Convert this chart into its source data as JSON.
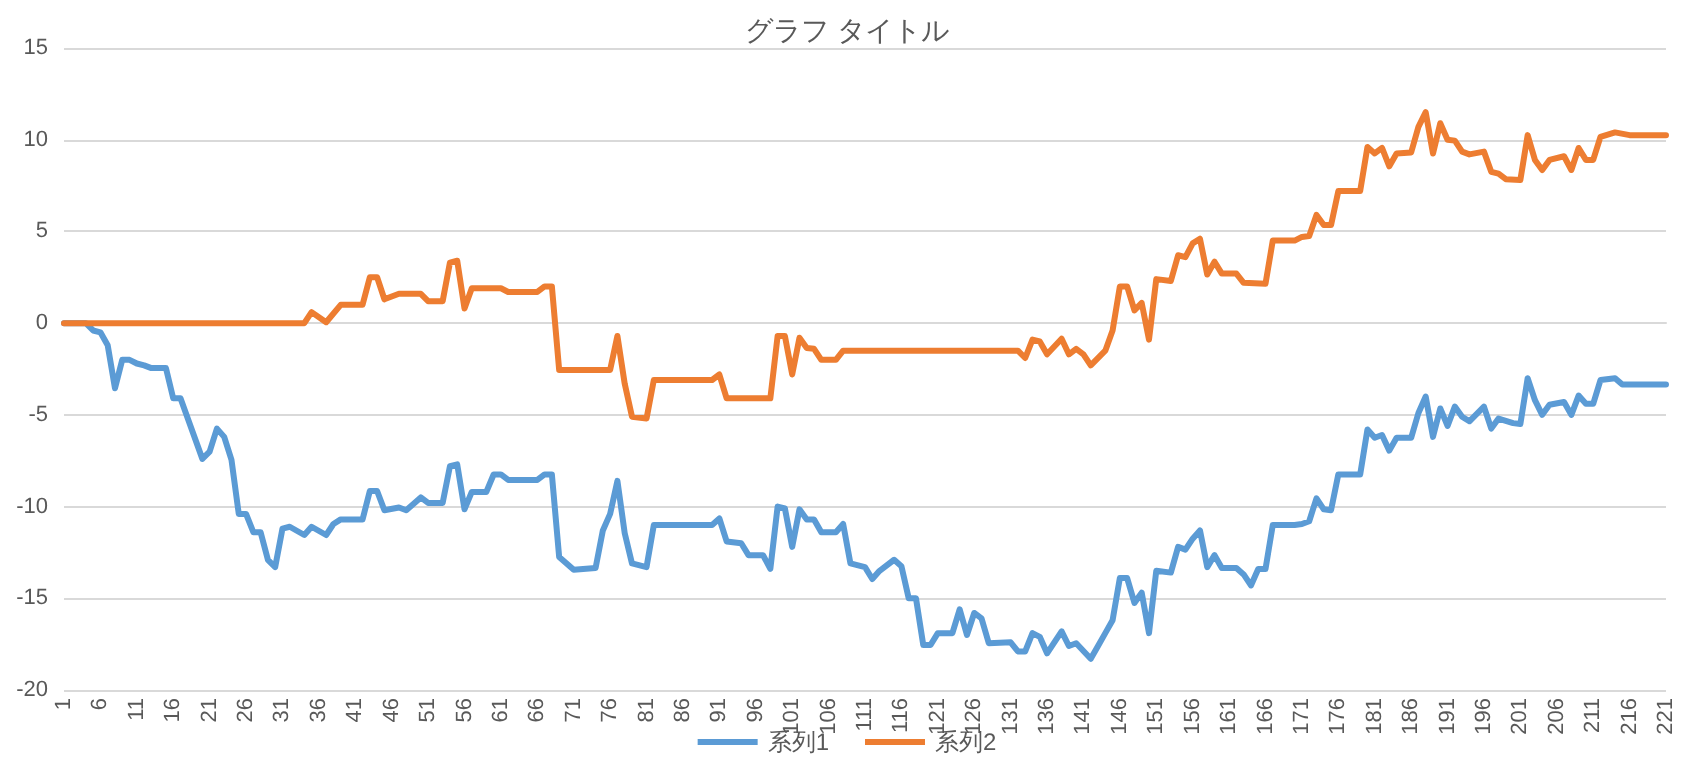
{
  "chart_data": {
    "type": "line",
    "title": "グラフ タイトル",
    "xlim": [
      1,
      221
    ],
    "xticks": [
      1,
      6,
      11,
      16,
      21,
      26,
      31,
      36,
      41,
      46,
      51,
      56,
      61,
      66,
      71,
      76,
      81,
      86,
      91,
      96,
      101,
      106,
      111,
      116,
      121,
      126,
      131,
      136,
      141,
      146,
      151,
      156,
      161,
      166,
      171,
      176,
      181,
      186,
      191,
      196,
      201,
      206,
      211,
      216,
      221
    ],
    "ylim": [
      -20,
      15
    ],
    "yticks": [
      -20,
      -15,
      -10,
      -5,
      0,
      5,
      10,
      15
    ],
    "grid": "y",
    "legend": "bottom",
    "marker": "none",
    "line_style": "solid",
    "series": [
      {
        "name": "系列1",
        "color": "#5b9bd5",
        "x": [
          1,
          4,
          5,
          6,
          7,
          8,
          9,
          10,
          11,
          12,
          13,
          15,
          16,
          17,
          18,
          20,
          21,
          22,
          23,
          24,
          25,
          26,
          27,
          28,
          29,
          30,
          31,
          32,
          34,
          35,
          37,
          38,
          39,
          42,
          43,
          44,
          45,
          47,
          48,
          50,
          51,
          53,
          54,
          55,
          56,
          57,
          59,
          60,
          61,
          62,
          66,
          67,
          68,
          69,
          71,
          74,
          75,
          76,
          77,
          78,
          79,
          81,
          82,
          90,
          91,
          92,
          94,
          95,
          97,
          98,
          99,
          100,
          101,
          102,
          103,
          104,
          105,
          107,
          108,
          109,
          111,
          112,
          113,
          115,
          116,
          117,
          118,
          119,
          120,
          121,
          123,
          124,
          125,
          126,
          127,
          128,
          131,
          132,
          133,
          134,
          135,
          136,
          138,
          139,
          140,
          142,
          143,
          144,
          145,
          146,
          147,
          148,
          149,
          150,
          151,
          153,
          154,
          155,
          156,
          157,
          158,
          159,
          160,
          162,
          163,
          164,
          165,
          166,
          167,
          170,
          171,
          172,
          173,
          174,
          175,
          176,
          179,
          180,
          181,
          182,
          183,
          184,
          186,
          187,
          188,
          189,
          190,
          191,
          192,
          193,
          194,
          196,
          197,
          198,
          200,
          201,
          202,
          203,
          204,
          205,
          207,
          208,
          209,
          210,
          211,
          212,
          214,
          215,
          221
        ],
        "values": [
          0,
          0,
          -0.4,
          -0.5,
          -1.2,
          -3.55,
          -2.0,
          -2.0,
          -2.2,
          -2.3,
          -2.45,
          -2.45,
          -4.1,
          -4.1,
          -5.2,
          -7.4,
          -7.0,
          -5.75,
          -6.2,
          -7.45,
          -10.4,
          -10.4,
          -11.4,
          -11.4,
          -12.9,
          -13.3,
          -11.2,
          -11.1,
          -11.55,
          -11.1,
          -11.55,
          -10.95,
          -10.7,
          -10.7,
          -9.15,
          -9.15,
          -10.2,
          -10.05,
          -10.2,
          -9.5,
          -9.8,
          -9.8,
          -7.8,
          -7.7,
          -10.15,
          -9.2,
          -9.2,
          -8.25,
          -8.25,
          -8.55,
          -8.55,
          -8.25,
          -8.25,
          -12.75,
          -13.45,
          -13.35,
          -11.3,
          -10.4,
          -8.6,
          -11.45,
          -13.1,
          -13.3,
          -11.0,
          -11.0,
          -10.65,
          -11.9,
          -12.0,
          -12.65,
          -12.65,
          -13.4,
          -10.0,
          -10.1,
          -12.2,
          -10.15,
          -10.7,
          -10.7,
          -11.4,
          -11.4,
          -10.95,
          -13.1,
          -13.3,
          -13.95,
          -13.5,
          -12.9,
          -13.25,
          -15.0,
          -15.0,
          -17.55,
          -17.55,
          -16.9,
          -16.9,
          -15.6,
          -17.0,
          -15.8,
          -16.1,
          -17.45,
          -17.4,
          -17.9,
          -17.9,
          -16.9,
          -17.1,
          -18.0,
          -16.8,
          -17.6,
          -17.45,
          -18.3,
          -17.6,
          -16.9,
          -16.2,
          -13.9,
          -13.9,
          -15.25,
          -14.7,
          -16.9,
          -13.5,
          -13.6,
          -12.2,
          -12.35,
          -11.75,
          -11.3,
          -13.3,
          -12.65,
          -13.35,
          -13.35,
          -13.7,
          -14.3,
          -13.4,
          -13.4,
          -11.0,
          -11.0,
          -10.95,
          -10.8,
          -9.55,
          -10.15,
          -10.2,
          -8.25,
          -8.25,
          -5.8,
          -6.25,
          -6.1,
          -6.95,
          -6.25,
          -6.25,
          -4.9,
          -4.0,
          -6.2,
          -4.65,
          -5.6,
          -4.55,
          -5.1,
          -5.35,
          -4.55,
          -5.75,
          -5.2,
          -5.45,
          -5.5,
          -3.0,
          -4.2,
          -5.0,
          -4.45,
          -4.3,
          -5.0,
          -3.95,
          -4.4,
          -4.4,
          -3.1,
          -3.0,
          -3.35,
          -3.35
        ]
      },
      {
        "name": "系列2",
        "color": "#ed7d31",
        "x": [
          1,
          34,
          35,
          37,
          39,
          42,
          43,
          44,
          45,
          47,
          50,
          51,
          53,
          54,
          55,
          56,
          57,
          61,
          62,
          66,
          67,
          68,
          69,
          76,
          77,
          78,
          79,
          81,
          82,
          90,
          91,
          92,
          98,
          99,
          100,
          101,
          102,
          103,
          104,
          105,
          107,
          108,
          132,
          133,
          134,
          135,
          136,
          138,
          139,
          140,
          141,
          142,
          144,
          145,
          146,
          147,
          148,
          149,
          150,
          151,
          153,
          154,
          155,
          156,
          157,
          158,
          159,
          160,
          162,
          163,
          166,
          167,
          170,
          171,
          172,
          173,
          174,
          175,
          176,
          179,
          180,
          181,
          182,
          183,
          184,
          186,
          187,
          188,
          189,
          190,
          191,
          192,
          193,
          194,
          196,
          197,
          198,
          199,
          201,
          202,
          203,
          204,
          205,
          207,
          208,
          209,
          210,
          211,
          212,
          214,
          216,
          221
        ],
        "values": [
          0,
          0,
          0.6,
          0.05,
          1.0,
          1.0,
          2.5,
          2.5,
          1.3,
          1.6,
          1.6,
          1.2,
          1.2,
          3.3,
          3.4,
          0.8,
          1.9,
          1.9,
          1.7,
          1.7,
          2.0,
          2.0,
          -2.55,
          -2.55,
          -0.7,
          -3.3,
          -5.1,
          -5.2,
          -3.1,
          -3.1,
          -2.8,
          -4.1,
          -4.1,
          -0.7,
          -0.7,
          -2.8,
          -0.8,
          -1.35,
          -1.4,
          -2.0,
          -2.0,
          -1.5,
          -1.5,
          -1.9,
          -0.9,
          -1.0,
          -1.7,
          -0.85,
          -1.7,
          -1.4,
          -1.7,
          -2.3,
          -1.5,
          -0.4,
          2.0,
          2.0,
          0.7,
          1.1,
          -0.9,
          2.4,
          2.3,
          3.7,
          3.6,
          4.35,
          4.6,
          2.65,
          3.35,
          2.7,
          2.7,
          2.2,
          2.15,
          4.5,
          4.5,
          4.7,
          4.75,
          5.9,
          5.35,
          5.35,
          7.2,
          7.2,
          9.6,
          9.25,
          9.55,
          8.55,
          9.25,
          9.3,
          10.7,
          11.5,
          9.25,
          10.9,
          10.0,
          9.95,
          9.35,
          9.2,
          9.35,
          8.25,
          8.15,
          7.85,
          7.8,
          10.25,
          8.9,
          8.35,
          8.9,
          9.1,
          8.35,
          9.55,
          8.9,
          8.9,
          10.15,
          10.4,
          10.25,
          10.25
        ]
      }
    ]
  }
}
